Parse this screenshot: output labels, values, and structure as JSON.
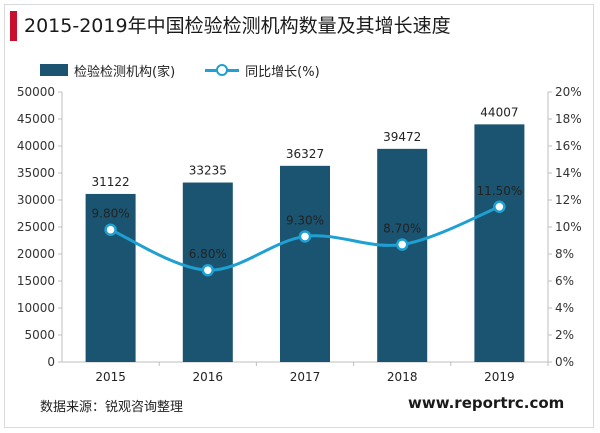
{
  "title": "2015-2019年中国检验检测机构数量及其增长速度",
  "legend": {
    "bar_label": "检验检测机构(家)",
    "line_label": "同比增长(%)"
  },
  "footer": {
    "source": "数据来源：锐观咨询整理",
    "website": "www.reportrc.com"
  },
  "colors": {
    "bar": "#1a5470",
    "line": "#1ea0d2",
    "title_accent": "#c8102e"
  },
  "chart_data": {
    "type": "bar",
    "categories": [
      "2015",
      "2016",
      "2017",
      "2018",
      "2019"
    ],
    "series": [
      {
        "name": "检验检测机构(家)",
        "type": "bar",
        "axis": "left",
        "values": [
          31122,
          33235,
          36327,
          39472,
          44007
        ],
        "labels": [
          "31122",
          "33235",
          "36327",
          "39472",
          "44007"
        ]
      },
      {
        "name": "同比增长(%)",
        "type": "line",
        "axis": "right",
        "values": [
          9.8,
          6.8,
          9.3,
          8.7,
          11.5
        ],
        "labels": [
          "9.80%",
          "6.80%",
          "9.30%",
          "8.70%",
          "11.50%"
        ]
      }
    ],
    "y_left": {
      "min": 0,
      "max": 50000,
      "ticks": [
        "0",
        "5000",
        "10000",
        "15000",
        "20000",
        "25000",
        "30000",
        "35000",
        "40000",
        "45000",
        "50000"
      ]
    },
    "y_right": {
      "min": 0,
      "max": 20,
      "ticks": [
        "0%",
        "2%",
        "4%",
        "6%",
        "8%",
        "10%",
        "12%",
        "14%",
        "16%",
        "18%",
        "20%"
      ]
    },
    "grid": false,
    "legend_position": "top-left"
  }
}
